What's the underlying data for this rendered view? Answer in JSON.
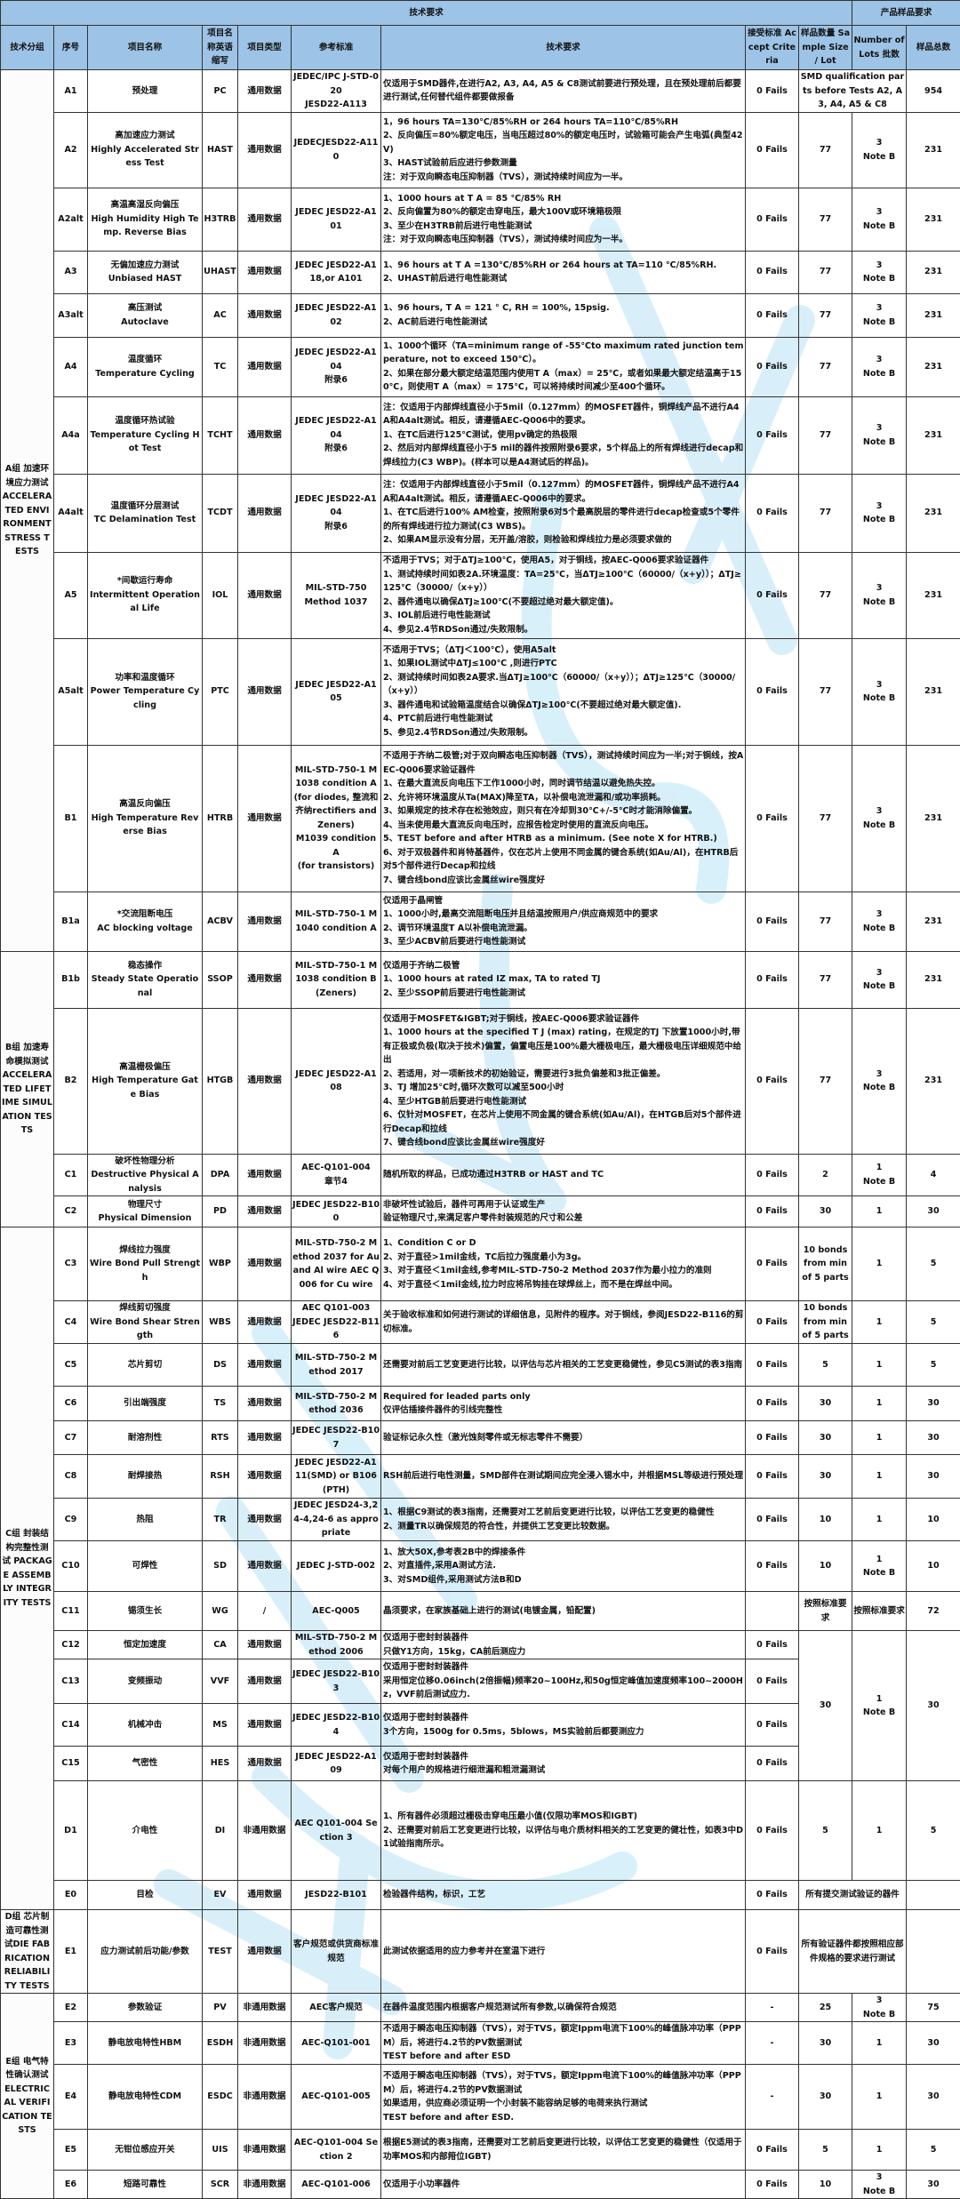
{
  "header": {
    "tech_title": "技术要求",
    "sample_title": "产品样品要求",
    "columns": [
      "技术分组",
      "序号",
      "项目名称",
      "项目名称英语缩写",
      "项目类型",
      "参考标准",
      "技术要求",
      "接受标准 Accept Criteria",
      "样品数量 Sample Size / Lot",
      "Number of Lots 批数",
      "样品总数"
    ]
  },
  "groups": [
    {
      "label": "A组 加速环境应力测试 ACCELERATED ENVIRONMENT STRESS TESTS"
    },
    {
      "label": "B组 加速寿命模拟测试 ACCELERATED LIFETIME SIMULATION TESTS"
    },
    {
      "label": "C组 封装结构完整性测试 PACKAGE ASSEMBLY INTEGRITY TESTS"
    },
    {
      "label": "D组 芯片制造可靠性测试DIE FABRICATION RELIABILITY TESTS"
    },
    {
      "label": "E组 电气特性确认测试 ELECTRICAL VERIFICATION TESTS"
    }
  ],
  "rows": [
    {
      "id": "A1",
      "name": "预处理",
      "abbr": "PC",
      "type": "通用数据",
      "std": "JEDEC/IPC J-STD-020\nJESD22-A113",
      "req": "仅适用于SMD器件,在进行A2, A3, A4, A5 & C8测试前要进行预处理，且在预处理前后都要进行测试,任何替代组件都要做报备",
      "accept": "0 Fails",
      "sample": "SMD qualification parts before Tests A2, A3, A4, A5 & C8",
      "lots": "",
      "total": "954"
    },
    {
      "id": "A2",
      "name": "高加速应力测试\nHighly Accelerated Stress Test",
      "abbr": "HAST",
      "type": "通用数据",
      "std": "JEDECJESD22-A110",
      "req": "1，96  hours TA=130℃/85%RH or 264 hours TA=110℃/85%RH\n2、反向偏压=80%额定电压，当电压超过80%的额定电压时，试验箱可能会产生电弧(典型42V)\n3、HAST试验前后应进行参数测量\n注：对于双向瞬态电压抑制器（TVS），测试持续时间应为一半。",
      "accept": "0 Fails",
      "sample": "77",
      "lots": "3\nNote B",
      "total": "231"
    },
    {
      "id": "A2alt",
      "name": "高温高湿反向偏压\nHigh Humidity High Temp. Reverse Bias",
      "abbr": "H3TRB",
      "type": "通用数据",
      "std": "JEDEC JESD22-A101",
      "req": "1、1000 hours at T A = 85 ℃/85% RH\n2、反向偏置为80%的额定击穿电压，最大100V或环境箱极限\n3、至少在H3TRB前后进行电性能测试\n注：对于双向瞬态电压抑制器（TVS），测试持续时间应为一半。",
      "accept": "0 Fails",
      "sample": "77",
      "lots": "3\nNote B",
      "total": "231"
    },
    {
      "id": "A3",
      "name": "无偏加速应力测试\nUnbiased HAST",
      "abbr": "UHAST",
      "type": "通用数据",
      "std": "JEDEC JESD22-A118,or A101",
      "req": "1、96 hours at T A =130℃/85%RH or 264 hours at TA=110 ℃/85%RH.\n2、UHAST前后进行电性能测试",
      "accept": "0 Fails",
      "sample": "77",
      "lots": "3\nNote B",
      "total": "231"
    },
    {
      "id": "A3alt",
      "name": "高压测试\nAutoclave",
      "abbr": "AC",
      "type": "通用数据",
      "std": "JEDEC JESD22-A102",
      "req": "1、96 hours, T A = 121 ° C, RH = 100%, 15psig.\n2、AC前后进行电性能测试",
      "accept": "0 Fails",
      "sample": "77",
      "lots": "3\nNote B",
      "total": "231"
    },
    {
      "id": "A4",
      "name": "温度循环\nTemperature Cycling",
      "abbr": "TC",
      "type": "通用数据",
      "std": "JEDEC JESD22-A104\n附录6",
      "req": "1、1000个循环（TA=minimum range of -55℃to maximum rated junction temperature, not to exceed 150℃）。\n2、如果在部分最大额定结温范围内使用T A（max）= 25℃，或者如果最大额定结温高于150℃，则使用T A（max）= 175℃，可以将持续时间减少至400个循环。",
      "accept": "0 Fails",
      "sample": "77",
      "lots": "3\nNote B",
      "total": "231"
    },
    {
      "id": "A4a",
      "name": "温度循环热试验\nTemperature Cycling Hot Test",
      "abbr": "TCHT",
      "type": "通用数据",
      "std": "JEDEC JESD22-A104\n附录6",
      "req": "注：仅适用于内部焊线直径小于5mil（0.127mm）的MOSFET器件，铜焊线产品不进行A4A和A4alt测试。相反，请遵循AEC-Q006中的要求。\n1、在TC后进行125℃测试，使用pv确定的热极限\n2、然后对内部焊线直径小于5 mil的器件按照附录6要求，5个样品上的所有焊线进行decap和焊线拉力(C3 WBP)。(样本可以是A4测试后的样品)。",
      "accept": "0 Fails",
      "sample": "77",
      "lots": "3\nNote B",
      "total": "231"
    },
    {
      "id": "A4alt",
      "name": "温度循环分层测试\nTC Delamination Test",
      "abbr": "TCDT",
      "type": "通用数据",
      "std": "JEDEC JESD22-A104\n附录6",
      "req": "注：仅适用于内部焊线直径小于5mil（0.127mm）的MOSFET器件，铜焊线产品不进行A4A和A4alt测试。相反，请遵循AEC-Q006中的要求。\n1、在TC后进行100% AM检查，按照附录6对5个最高脱层的零件进行decap检查或5个零件的所有焊线进行拉力测试(C3 WBS)。\n2、如果AM显示没有分层，无开盖/溶胶，则检验和焊线拉力是必须要求做的",
      "accept": "0 Fails",
      "sample": "77",
      "lots": "3\nNote B",
      "total": "231"
    },
    {
      "id": "A5",
      "name": "*间歇运行寿命\nIntermittent Operational Life",
      "abbr": "IOL",
      "type": "通用数据",
      "std": "MIL-STD-750\nMethod 1037",
      "req": "不适用于TVS；对于ΔTJ≥100℃，使用A5，对于铜线，按AEC-Q006要求验证器件\n1、测试持续时间如表2A.环境温度：TA=25℃，当ΔTJ≥100℃（60000/（x+y））；ΔTJ≥125℃（30000/（x+y））\n2、器件通电以确保ΔTJ≥100℃(不要超过绝对最大额定值)。\n3、IOL前后进行电性能测试\n4、参见2.4节RDSon通过/失败限制。",
      "accept": "0 Fails",
      "sample": "77",
      "lots": "3\nNote B",
      "total": "231"
    },
    {
      "id": "A5alt",
      "name": "功率和温度循环\nPower Temperature Cycling",
      "abbr": "PTC",
      "type": "通用数据",
      "std": "JEDEC JESD22-A105",
      "req": "不适用于TVS；（ΔTJ＜100℃），使用A5alt\n1、如果IOL测试中ΔTJ≤100℃ ,则进行PTC\n2、测试持续时间如表2A要求.当ΔTJ≥100℃（60000/（x+y））；ΔTJ≥125℃（30000/（x+y））\n3、器件通电和试验箱温度结合以确保ΔTJ≥100℃(不要超过绝对最大额定值).\n4、PTC前后进行电性能测试\n5、参见2.4节RDSon通过/失败限制。",
      "accept": "0 Fails",
      "sample": "77",
      "lots": "3\nNote B",
      "total": "231"
    },
    {
      "id": "B1",
      "name": "高温反向偏压\nHigh Temperature Reverse Bias",
      "abbr": "HTRB",
      "type": "通用数据",
      "std": "MIL-STD-750-1 M1038 condition A\n(for diodes, 整流和齐纳rectifiers and Zeners)\nM1039 condition A\n(for transistors)",
      "req": "不适用于齐纳二极管;对于双向瞬态电压抑制器（TVS），测试持续时间应为一半;对于铜线，按AEC-Q006要求验证器件\n1、在最大直流反向电压下工作1000小时，同时调节结温以避免热失控。\n2、允许将环境温度从Ta(MAX)降至TA，以补偿电流泄漏和/或功率损耗。\n3、如果规定的技术存在松弛效应，则只有在冷却到30℃+/-5℃时才能消除偏置。\n4、当未使用最大直流反向电压时，应报告检定时使用的直流反向电压。\n5、TEST before and after HTRB as a minimum. (See note X for HTRB.)\n6、对于双极器件和肖特基器件，仅在芯片上使用不同金属的键合系统(如Au/Al)，在HTRB后对5个部件进行Decap和拉线\n7、键合线bond应该比金属丝wire强度好",
      "accept": "0 Fails",
      "sample": "77",
      "lots": "3\nNote B",
      "total": "231"
    },
    {
      "id": "B1a",
      "name": "*交流阻断电压\nAC blocking voltage",
      "abbr": "ACBV",
      "type": "通用数据",
      "std": "MIL-STD-750-1 M1040 condition A",
      "req": "仅适用于晶闸管\n1、1000小时,最高交流阻断电压并且结温按照用户/供应商规范中的要求\n2、调节环境温度T A以补偿电流泄漏。\n3、至少ACBV前后要进行电性能测试",
      "accept": "0 Fails",
      "sample": "77",
      "lots": "3\nNote B",
      "total": "231"
    },
    {
      "id": "B1b",
      "name": "稳态操作\nSteady State Operational",
      "abbr": "SSOP",
      "type": "通用数据",
      "std": "MIL-STD-750-1 M1038 condition B (Zeners)",
      "req": "仅适用于齐纳二极管\n1、1000 hours at rated IZ max, TA to rated TJ\n2、至少SSOP前后要进行电性能测试",
      "accept": "0 Fails",
      "sample": "77",
      "lots": "3\nNote B",
      "total": "231"
    },
    {
      "id": "B2",
      "name": "高温栅极偏压\nHigh Temperature Gate Bias",
      "abbr": "HTGB",
      "type": "通用数据",
      "std": "JEDEC JESD22-A108",
      "req": "仅适用于MOSFET&IGBT;对于铜线，按AEC-Q006要求验证器件\n1、1000 hours at the specified T J (max) rating，在规定的TJ 下放置1000小时,带有正极或负极(取决于技术)偏置，偏置电压是100%最大栅极电压，最大栅极电压详细规范中给出\n2、若适用，对一项新技术的初始验证，需要进行3批负偏差和3批正偏差。\n3、TJ 增加25°C时,循环次数可以减至500小时\n4、至少HTGB前后要进行电性能测试\n6、仅针对MOSFET，在芯片上使用不同金属的键合系统(如Au/Al)，在HTGB后对5个部件进行Decap和拉线\n7、键合线bond应该比金属丝wire强度好",
      "accept": "0 Fails",
      "sample": "77",
      "lots": "3\nNote B",
      "total": "231"
    },
    {
      "id": "C1",
      "name": "破坏性物理分析\nDestructive Physical Analysis",
      "abbr": "DPA",
      "type": "通用数据",
      "std": "AEC-Q101-004\n章节4",
      "req": "随机所取的样品，已成功通过H3TRB or HAST and TC",
      "accept": "0 Fails",
      "sample": "2",
      "lots": "1\nNote B",
      "total": "4"
    },
    {
      "id": "C2",
      "name": "物理尺寸\nPhysical Dimension",
      "abbr": "PD",
      "type": "通用数据",
      "std": "JEDEC JESD22-B100",
      "req": "非破坏性试验后，器件可再用于认证或生产\n验证物理尺寸,来满足客户零件封装规范的尺寸和公差",
      "accept": "0 Fails",
      "sample": "30",
      "lots": "1",
      "total": "30"
    },
    {
      "id": "C3",
      "name": "焊线拉力强度\nWire Bond Pull Strength",
      "abbr": "WBP",
      "type": "通用数据",
      "std": "MIL-STD-750-2 Method 2037 for Au and Al wire AEC Q006 for Cu wire",
      "req": "1、Condition C or D\n2、对于直径>1mil金线，TC后拉力强度最小为3g。\n3、对于直径＜1mil金线,参考MIL-STD-750-2 Method 2037作为最小拉力的准则\n4、对于直径＜1mil金线,拉力时应将吊钩挂在球焊丝上，而不是在焊丝中间。",
      "accept": "0 Fails",
      "sample": "10 bonds from min of 5 parts",
      "lots": "1",
      "total": "5"
    },
    {
      "id": "C4",
      "name": "焊线剪切强度\nWire Bond Shear Strength",
      "abbr": "WBS",
      "type": "通用数据",
      "std": "AEC Q101-003\nJEDEC JESD22-B116",
      "req": "关于验收标准和如何进行测试的详细信息，见附件的程序。对于铜线，参阅JESD22-B116的剪切标准。",
      "accept": "0 Fails",
      "sample": "10 bonds from min of 5 parts",
      "lots": "1",
      "total": "5"
    },
    {
      "id": "C5",
      "name": "芯片剪切",
      "abbr": "DS",
      "type": "通用数据",
      "std": "MIL-STD-750-2 Method 2017",
      "req": "还需要对前后工艺变更进行比较，以评估与芯片相关的工艺变更稳健性，参见C5测试的表3指南",
      "accept": "0 Fails",
      "sample": "5",
      "lots": "1",
      "total": "5"
    },
    {
      "id": "C6",
      "name": "引出端强度",
      "abbr": "TS",
      "type": "通用数据",
      "std": "MIL-STD-750-2 Method 2036",
      "req": "Required for leaded parts only\n仅评估插接件器件的引线完整性",
      "accept": "0 Fails",
      "sample": "30",
      "lots": "1",
      "total": "30"
    },
    {
      "id": "C7",
      "name": "耐溶剂性",
      "abbr": "RTS",
      "type": "通用数据",
      "std": "JEDEC JESD22-B107",
      "req": "验证标记永久性（激光蚀刻零件或无标志零件不需要）",
      "accept": "0 Fails",
      "sample": "30",
      "lots": "1",
      "total": "30"
    },
    {
      "id": "C8",
      "name": "耐焊接热",
      "abbr": "RSH",
      "type": "通用数据",
      "std": "JEDEC JESD22-A111(SMD) or B106(PTH)",
      "req": "RSH前后进行电性测量，SMD部件在测试期间应完全浸入锡水中，并根据MSL等级进行预处理",
      "accept": "0 Fails",
      "sample": "30",
      "lots": "1",
      "total": "30"
    },
    {
      "id": "C9",
      "name": "热阻",
      "abbr": "TR",
      "type": "通用数据",
      "std": "JEDEC JESD24-3,24-4,24-6 as appropriate",
      "req": "1、根据C9测试的表3指南，还需要对工艺前后变更进行比较，以评估工艺变更的稳健性\n2、测量TR以确保规范的符合性，并提供工艺变更比较数据。",
      "accept": "0 Fails",
      "sample": "10",
      "lots": "1",
      "total": "10"
    },
    {
      "id": "C10",
      "name": "可焊性",
      "abbr": "SD",
      "type": "通用数据",
      "std": "JEDEC J-STD-002",
      "req": "1、放大50X,参考表2B中的焊接条件\n2、对直插件,采用A测试方法.\n3、对SMD组件,采用测试方法B和D",
      "accept": "0 Fails",
      "sample": "10",
      "lots": "1\nNote B",
      "total": "10"
    },
    {
      "id": "C11",
      "name": "锡须生长",
      "abbr": "WG",
      "type": "/",
      "std": "AEC-Q005",
      "req": "晶须要求，在家族基础上进行的测试(电镀金属，铅配置)",
      "accept": "",
      "sample": "按照标准要求",
      "lots": "按照标准要求",
      "total": "72"
    },
    {
      "id": "C12",
      "name": "恒定加速度",
      "abbr": "CA",
      "type": "通用数据",
      "std": "MIL-STD-750-2 Method 2006",
      "req": "仅适用于密封封装器件\n只做Y1方向，15kg，CA前后测应力",
      "accept": "0 Fails",
      "sample": "30",
      "lots": "1\nNote B",
      "total": "30"
    },
    {
      "id": "C13",
      "name": "变频振动",
      "abbr": "VVF",
      "type": "通用数据",
      "std": "JEDEC JESD22-B103",
      "req": "仅适用于密封封装器件\n采用恒定位移0.06inch(2倍振幅)频率20~100Hz,和50g恒定峰值加速度频率100~2000Hz，VVF前后测试应力.",
      "accept": "0 Fails"
    },
    {
      "id": "C14",
      "name": "机械冲击",
      "abbr": "MS",
      "type": "通用数据",
      "std": "JEDEC JESD22-B104",
      "req": "仅适用于密封封装器件\n3个方向，1500g for 0.5ms，5blows，MS实验前后都要测应力",
      "accept": "0 Fails"
    },
    {
      "id": "C15",
      "name": "气密性",
      "abbr": "HES",
      "type": "通用数据",
      "std": "JEDEC JESD22-A109",
      "req": "仅适用于密封封装器件\n对每个用户的规格进行细泄漏和粗泄漏测试",
      "accept": "0 Fails"
    },
    {
      "id": "D1",
      "name": "介电性",
      "abbr": "DI",
      "type": "非通用数据",
      "std": "AEC Q101-004 Section 3",
      "req": "1、所有器件必须超过栅极击穿电压最小值(仅限功率MOS和IGBT)\n2、还需要对前后工艺变更进行比较，以评估与电介质材料相关的工艺变更的健壮性，如表3中D1试验指南所示。",
      "accept": "0 Fails",
      "sample": "5",
      "lots": "1",
      "total": "5"
    },
    {
      "id": "E0",
      "name": "目检",
      "abbr": "EV",
      "type": "通用数据",
      "std": "JESD22-B101",
      "req": "检验器件结构，标识，工艺",
      "accept": "0 Fails",
      "sample": "所有提交测试验证的器件",
      "lots": "",
      "total": ""
    },
    {
      "id": "E1",
      "name": "应力测试前后功能/参数",
      "abbr": "TEST",
      "type": "通用数据",
      "std": "客户规范或供货商标准规范",
      "req": "此测试依据适用的应力参考并在室温下进行",
      "accept": "0 Fails",
      "sample": "所有验证器件都按照相应部件规格的要求进行测试",
      "lots": "",
      "total": ""
    },
    {
      "id": "E2",
      "name": "参数验证",
      "abbr": "PV",
      "type": "非通用数据",
      "std": "AEC客户规范",
      "req": "在器件温度范围内根据客户规范测试所有参数,以确保符合规范",
      "accept": "-",
      "sample": "25",
      "lots": "3\nNote B",
      "total": "75"
    },
    {
      "id": "E3",
      "name": "静电放电特性HBM",
      "abbr": "ESDH",
      "type": "非通用数据",
      "std": "AEC-Q101-001",
      "req": "不适用于瞬态电压抑制器（TVS），对于TVS，额定Ippm电流下100%的峰值脉冲功率（PPPM）后，将进行4.2节的PV数据测试\nTEST before and after ESD",
      "accept": "-",
      "sample": "30",
      "lots": "1",
      "total": "30"
    },
    {
      "id": "E4",
      "name": "静电放电特性CDM",
      "abbr": "ESDC",
      "type": "非通用数据",
      "std": "AEC-Q101-005",
      "req": "不适用于瞬态电压抑制器（TVS），对于TVS，额定Ippm电流下100%的峰值脉冲功率（PPPM）后，将进行4.2节的PV数据测试\n如果适用，供应商必须证明一个小封装不能容纳足够的电荷来执行测试\nTEST before and after ESD.",
      "accept": "-",
      "sample": "30",
      "lots": "1",
      "total": "30"
    },
    {
      "id": "E5",
      "name": "无钳位感应开关",
      "abbr": "UIS",
      "type": "非通用数据",
      "std": "AEC-Q101-004 Section 2",
      "req": "根据E5测试的表3指南，还需要对工艺前后变更进行比较，以评估工艺变更的稳健性（仅适用于功率MOS和内部箝位IGBT)",
      "accept": "0 Fails",
      "sample": "5",
      "lots": "1",
      "total": "5"
    },
    {
      "id": "E6",
      "name": "短路可靠性",
      "abbr": "SCR",
      "type": "非通用数据",
      "std": "AEC-Q101-006",
      "req": "仅适用于小功率器件",
      "accept": "0 Fails",
      "sample": "10",
      "lots": "3\nNote B",
      "total": "30"
    }
  ],
  "colors": {
    "header_bg": "#9dc3e6",
    "watermark": "#d4eefa"
  }
}
